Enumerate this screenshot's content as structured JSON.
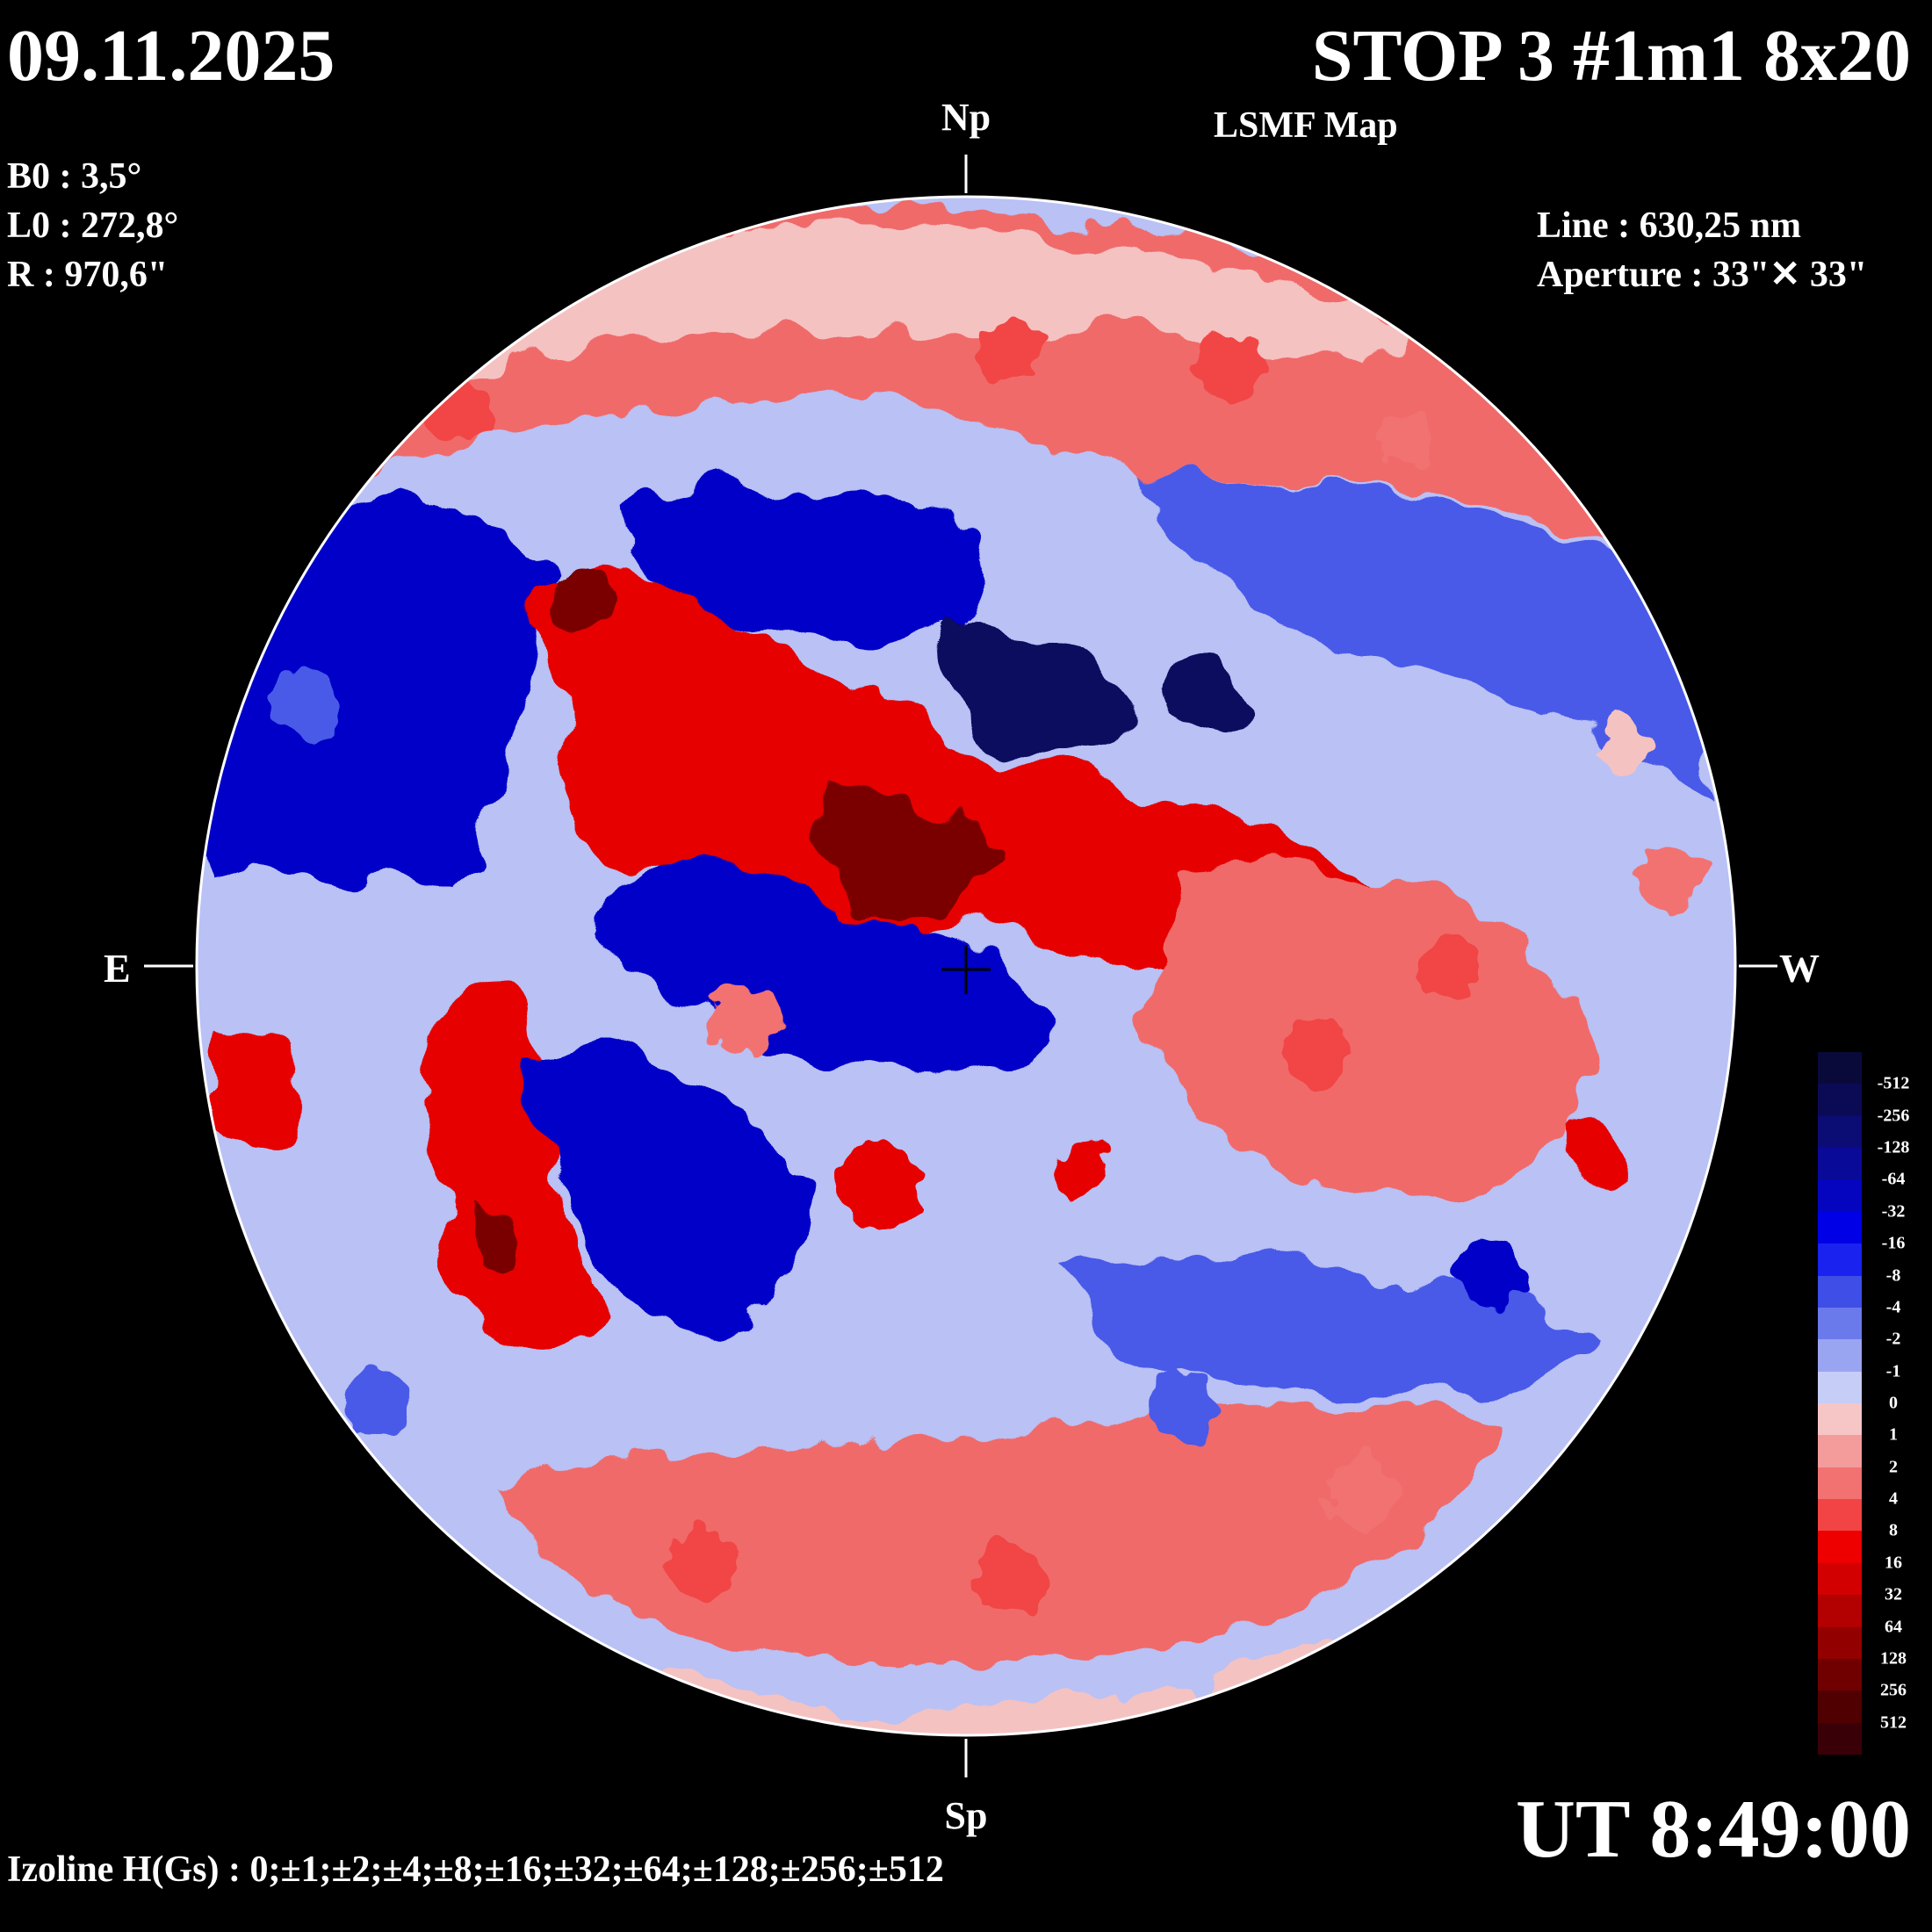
{
  "header": {
    "date": "09.11.2025",
    "title": "STOP 3 #1m1 8x20",
    "subtitle": "LSMF  Map",
    "b0": "B0 : 3,5°",
    "l0": "L0 : 272,8°",
    "radius": "R  : 970,6\"",
    "line": "Line :  630,25 nm",
    "aperture": "Aperture : 33\"✕ 33\""
  },
  "orientation": {
    "north": "Np",
    "south": "Sp",
    "east": "E",
    "west": "W"
  },
  "footer": {
    "time": "UT 8:49:00",
    "izoline": "Izoline H(Gs) : 0;±1;±2;±4;±8;±16;±32;±64;±128;±256;±512"
  },
  "legend": {
    "levels": [
      "-512",
      "-256",
      "-128",
      "-64",
      "-32",
      "-16",
      "-8",
      "-4",
      "-2",
      "-1",
      "0",
      "1",
      "2",
      "4",
      "8",
      "16",
      "32",
      "64",
      "128",
      "256",
      "512"
    ],
    "colors": [
      "#0a0a3a",
      "#0b0b55",
      "#0c0c75",
      "#0a0a98",
      "#0505bf",
      "#0000e6",
      "#1a22ef",
      "#3e4ee6",
      "#6b7aeb",
      "#9aa5f2",
      "#c6cdf7",
      "#f6c6c6",
      "#f49c9c",
      "#f27272",
      "#f24444",
      "#ee0000",
      "#d20000",
      "#b30000",
      "#930000",
      "#700000",
      "#500000",
      "#3a0008"
    ]
  },
  "map_colors": {
    "neg_strong": "#070760",
    "neg_mid": "#0505c8",
    "neg_weak": "#4a5ae8",
    "neg_faint": "#b9c1f5",
    "pos_faint": "#f5c2c2",
    "pos_weak": "#f06a6a",
    "pos_mid": "#e60000",
    "pos_strong": "#7a0000",
    "izoline_zero": "#ffffff"
  }
}
